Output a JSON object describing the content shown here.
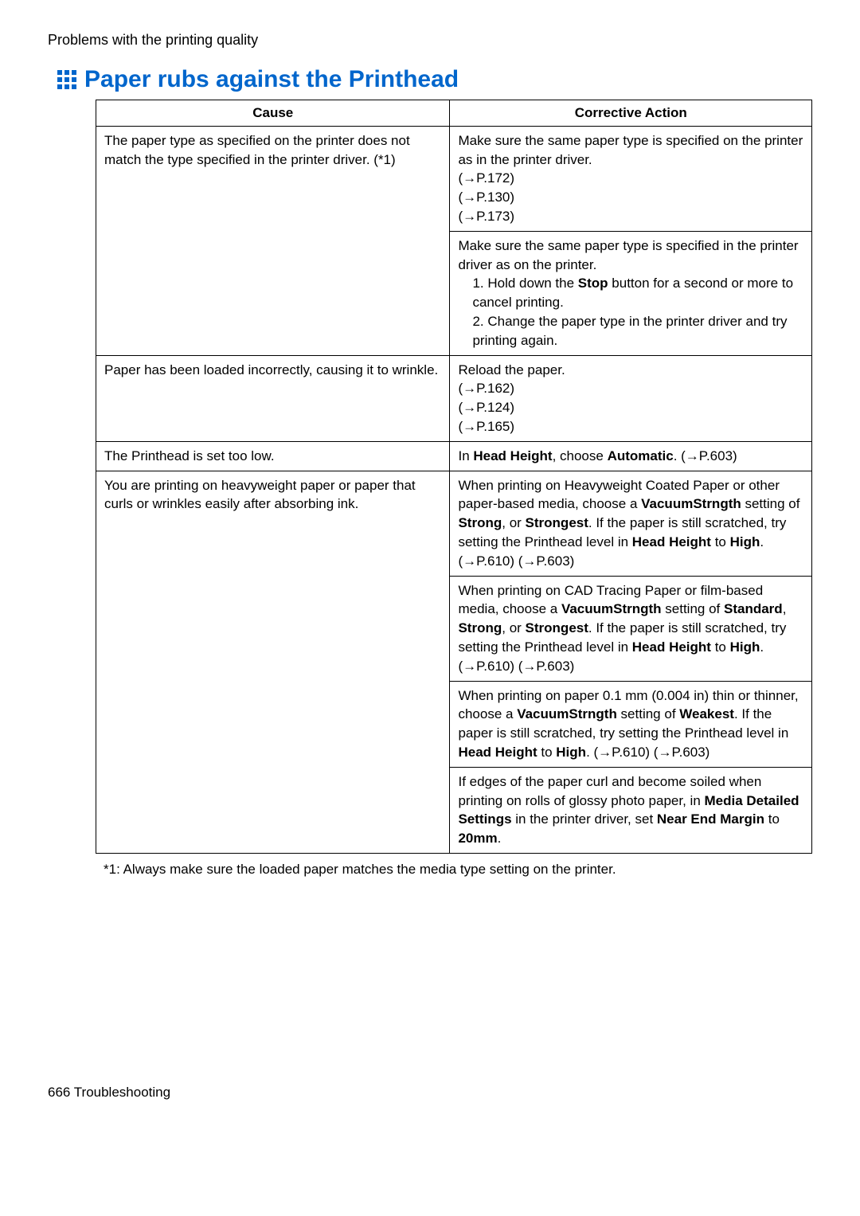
{
  "header": "Problems with the printing quality",
  "title": "Paper rubs against the Printhead",
  "table": {
    "headers": {
      "cause": "Cause",
      "action": "Corrective Action"
    },
    "rows": [
      {
        "cause": "The paper type as specified on the printer does not match the type specified in the printer driver. (*1)",
        "actions": [
          {
            "lines": [
              "Make sure the same paper type is specified on the printer as in the printer driver.",
              "(→P.172)",
              "(→P.130)",
              "(→P.173)"
            ]
          },
          {
            "lines": [
              "Make sure the same paper type is specified in the printer driver as on the printer."
            ],
            "ordered": [
              {
                "text_pre": "Hold down the ",
                "bold": "Stop",
                "text_post": " button for a second or more to cancel printing."
              },
              {
                "text_pre": "Change the paper type in the printer driver and try printing again.",
                "bold": "",
                "text_post": ""
              }
            ]
          }
        ]
      },
      {
        "cause": "Paper has been loaded incorrectly, causing it to wrinkle.",
        "actions": [
          {
            "lines": [
              "Reload the paper.",
              "(→P.162)",
              "(→P.124)",
              "(→P.165)"
            ]
          }
        ]
      },
      {
        "cause": "The Printhead is set too low.",
        "actions": [
          {
            "rich": {
              "pre": "In ",
              "b1": "Head Height",
              "mid": ", choose ",
              "b2": "Automatic",
              "post": ". (→P.603)"
            }
          }
        ]
      },
      {
        "cause": "You are printing on heavyweight paper or paper that curls or wrinkles easily after absorbing ink.",
        "actions": [
          {
            "html_key": "a4_1"
          },
          {
            "html_key": "a4_2"
          },
          {
            "html_key": "a4_3"
          },
          {
            "html_key": "a4_4"
          }
        ]
      }
    ]
  },
  "rich_actions": {
    "a4_1": "When printing on Heavyweight Coated Paper or other paper-based media, choose a <b>VacuumStrngth</b> setting of <b>Strong</b>, or <b>Strongest</b>. If the paper is still scratched, try setting the Printhead level in <b>Head Height</b> to <b>High</b>. (→P.610) (→P.603)",
    "a4_2": "When printing on CAD Tracing Paper or film-based media, choose a <b>VacuumStrngth</b> setting of <b>Standard</b>, <b>Strong</b>, or <b>Strongest</b>. If the paper is still scratched, try setting the Printhead level in <b>Head Height</b> to <b>High</b>. (→P.610) (→P.603)",
    "a4_3": "When printing on paper 0.1 mm (0.004 in) thin or thinner, choose a <b>VacuumStrngth</b> setting of <b>Weakest</b>. If the paper is still scratched, try setting the Printhead level in <b>Head Height</b> to <b>High</b>. (→P.610) (→P.603)",
    "a4_4": "If edges of the paper curl and become soiled when printing on rolls of glossy photo paper, in <b>Media Detailed Settings</b> in the printer driver, set <b>Near End Margin</b> to <b>20mm</b>."
  },
  "footnote": "*1: Always make sure the loaded paper matches the media type setting on the printer.",
  "footer": "666  Troubleshooting"
}
